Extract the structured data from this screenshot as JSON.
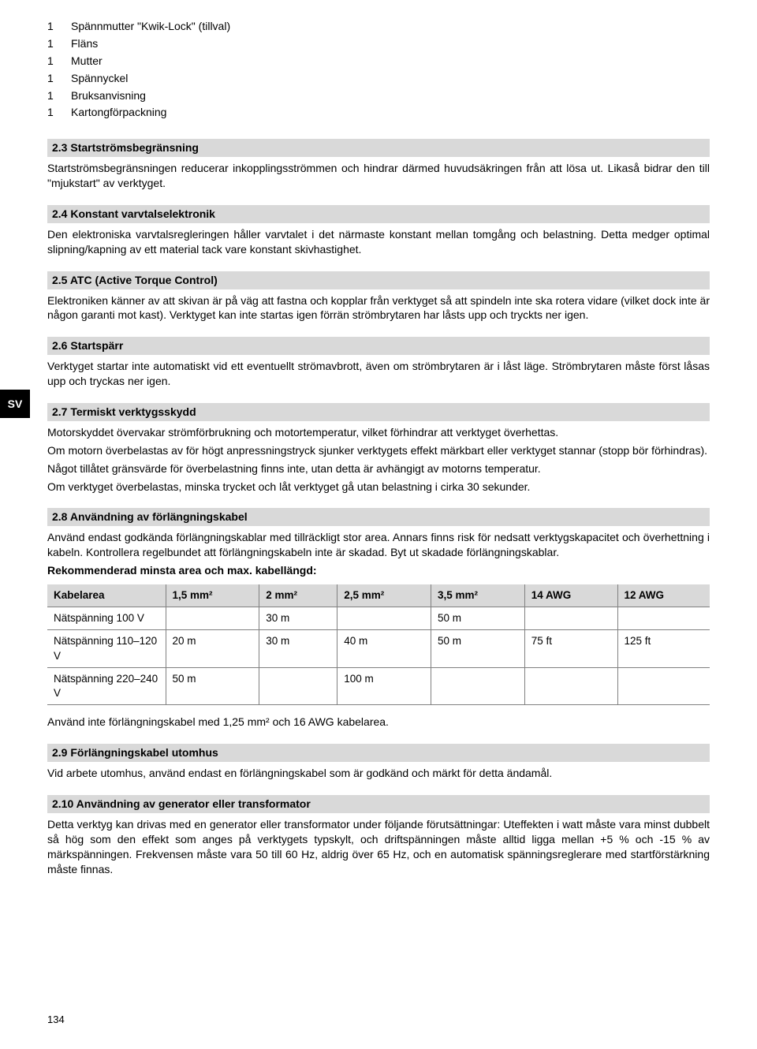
{
  "langTab": "SV",
  "parts": [
    {
      "qty": "1",
      "name": "Spännmutter \"Kwik-Lock\" (tillval)"
    },
    {
      "qty": "1",
      "name": "Fläns"
    },
    {
      "qty": "1",
      "name": "Mutter"
    },
    {
      "qty": "1",
      "name": "Spännyckel"
    },
    {
      "qty": "1",
      "name": "Bruksanvisning"
    },
    {
      "qty": "1",
      "name": "Kartongförpackning"
    }
  ],
  "sections": {
    "s23": {
      "heading": "2.3 Startströmsbegränsning",
      "body": "Startströmsbegränsningen reducerar inkopplingsströmmen och hindrar därmed huvudsäkringen från att lösa ut. Likaså bidrar den till \"mjukstart\" av verktyget."
    },
    "s24": {
      "heading": "2.4 Konstant varvtalselektronik",
      "body": "Den elektroniska varvtalsregleringen håller varvtalet i det närmaste konstant mellan tomgång och belastning. Detta medger optimal slipning/kapning av ett material tack vare konstant skivhastighet."
    },
    "s25": {
      "heading": "2.5 ATC (Active Torque Control)",
      "body": "Elektroniken känner av att skivan är på väg att fastna och kopplar från verktyget så att spindeln inte ska rotera vidare (vilket dock inte är någon garanti mot kast). Verktyget kan inte startas igen förrän strömbrytaren har låsts upp och tryckts ner igen."
    },
    "s26": {
      "heading": "2.6 Startspärr",
      "body": "Verktyget startar inte automatiskt vid ett eventuellt strömavbrott, även om strömbrytaren är i låst läge. Strömbrytaren måste först låsas upp och tryckas ner igen."
    },
    "s27": {
      "heading": "2.7 Termiskt verktygsskydd",
      "body1": "Motorskyddet övervakar strömförbrukning och motortemperatur, vilket förhindrar att verktyget överhettas.",
      "body2": "Om motorn överbelastas av för högt anpressningstryck sjunker verktygets effekt märkbart eller verktyget stannar (stopp bör förhindras).",
      "body3": "Något tillåtet gränsvärde för överbelastning finns inte, utan detta är avhängigt av motorns temperatur.",
      "body4": "Om verktyget överbelastas, minska trycket och låt verktyget gå utan belastning i cirka 30 sekunder."
    },
    "s28": {
      "heading": "2.8 Användning av förlängningskabel",
      "body": "Använd endast godkända förlängningskablar med tillräckligt stor area. Annars finns risk för nedsatt verktygskapacitet och överhettning i kabeln. Kontrollera regelbundet att förlängningskabeln inte är skadad. Byt ut skadade förlängningskablar.",
      "recLabel": "Rekommenderad minsta area och max. kabellängd:",
      "footer": "Använd inte förlängningskabel med 1,25 mm² och 16 AWG kabelarea."
    },
    "s29": {
      "heading": "2.9 Förlängningskabel utomhus",
      "body": "Vid arbete utomhus, använd endast en förlängningskabel som är godkänd och märkt för detta ändamål."
    },
    "s210": {
      "heading": "2.10 Användning av generator eller transformator",
      "body": "Detta verktyg kan drivas med en generator eller transformator under följande förutsättningar: Uteffekten i watt måste vara minst dubbelt så hög som den effekt som anges på verktygets typskylt, och driftspänningen måste alltid ligga mellan +5 % och -15 % av märkspänningen. Frekvensen måste vara 50 till 60 Hz, aldrig över 65 Hz, och en automatisk spänningsreglerare med startförstärkning måste finnas."
    }
  },
  "cableTable": {
    "headers": [
      "Kabelarea",
      "1,5 mm²",
      "2 mm²",
      "2,5 mm²",
      "3,5 mm²",
      "14 AWG",
      "12 AWG"
    ],
    "rows": [
      {
        "label": "Nätspänning 100 V",
        "c1": "",
        "c2": "30 m",
        "c3": "",
        "c4": "50 m",
        "c5": "",
        "c6": ""
      },
      {
        "label": "Nätspänning 110–120 V",
        "c1": "20 m",
        "c2": "30 m",
        "c3": "40 m",
        "c4": "50 m",
        "c5": "75 ft",
        "c6": "125 ft"
      },
      {
        "label": "Nätspänning 220–240 V",
        "c1": "50 m",
        "c2": "",
        "c3": "100 m",
        "c4": "",
        "c5": "",
        "c6": ""
      }
    ]
  },
  "pageNumber": "134"
}
